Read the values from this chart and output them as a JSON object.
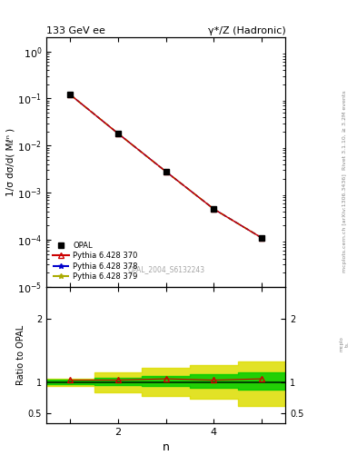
{
  "title_left": "133 GeV ee",
  "title_right": "γ*/Z (Hadronic)",
  "right_label_top": "Rivet 3.1.10, ≥ 3.2M events",
  "right_label_bottom": "mcplots.cern.ch [arXiv:1306.3436]",
  "watermark": "OPAL_2004_S6132243",
  "xlabel": "n",
  "ylabel_main": "1/σ dσ/d( Mℓⁿ )",
  "ylabel_ratio": "Ratio to OPAL",
  "xlim": [
    0.5,
    5.5
  ],
  "ylim_main": [
    1e-05,
    2.0
  ],
  "n_values": [
    1,
    2,
    3,
    4,
    5
  ],
  "opal_values": [
    0.12,
    0.018,
    0.0028,
    0.00045,
    0.00011
  ],
  "opal_errors": [
    0.003,
    0.0005,
    8e-05,
    1.5e-05,
    5e-06
  ],
  "pythia_370_color": "#cc0000",
  "pythia_378_color": "#0000cc",
  "pythia_379_color": "#aaaa00",
  "ratio_points": [
    1.03,
    1.03,
    1.05,
    1.03,
    1.05
  ],
  "band_green_lo": [
    0.97,
    0.95,
    0.93,
    0.91,
    0.88
  ],
  "band_green_hi": [
    1.04,
    1.06,
    1.09,
    1.12,
    1.15
  ],
  "band_yellow_lo": [
    0.93,
    0.83,
    0.78,
    0.73,
    0.62
  ],
  "band_yellow_hi": [
    1.05,
    1.15,
    1.22,
    1.27,
    1.33
  ],
  "legend_entries": [
    "OPAL",
    "Pythia 6.428 370",
    "Pythia 6.428 378",
    "Pythia 6.428 379"
  ]
}
